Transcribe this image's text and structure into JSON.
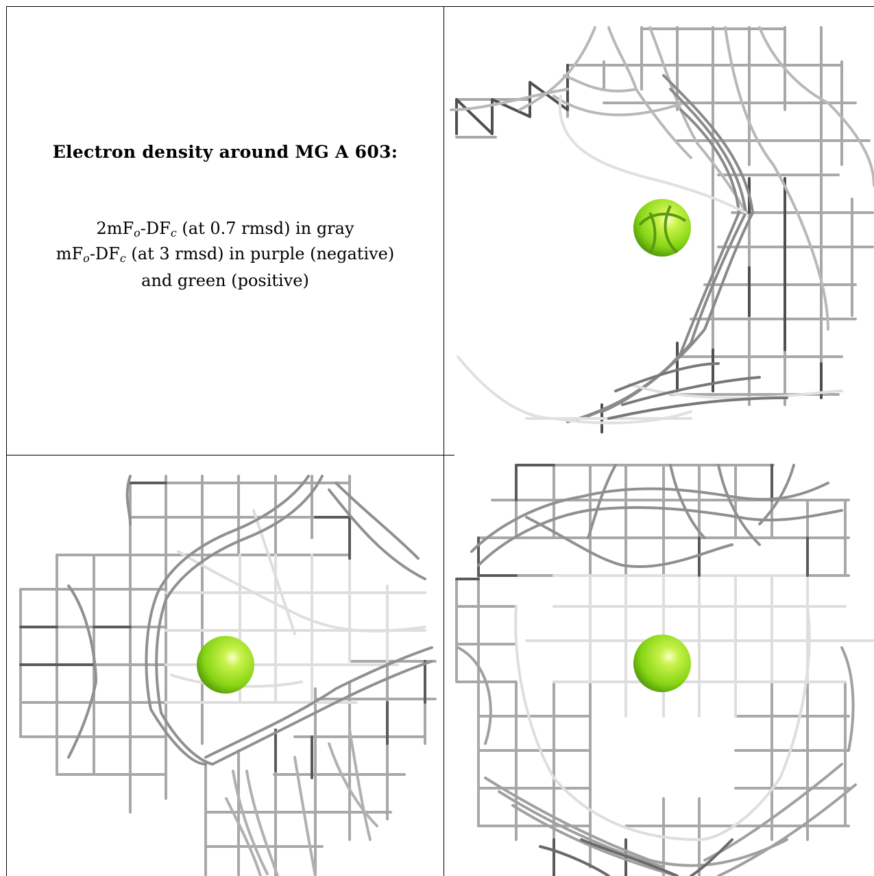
{
  "title": "Electron density around MG A 603:",
  "caption": {
    "line1_prefix": "2mF",
    "sub_o": "o",
    "dash": "-DF",
    "sub_c": "c",
    "line1_suffix": " (at 0.7 rmsd) in gray",
    "line2_prefix": "mF",
    "line2_suffix": " (at 3 rmsd) in purple (negative)",
    "line3": "and green (positive)"
  },
  "colors": {
    "mesh_dark": "#5a5a5a",
    "mesh_mid": "#9a9a9a",
    "mesh_light": "#dcdcdc",
    "atom": "#8fe01a",
    "atom_highlight": "#f4ffb0"
  },
  "icons": {
    "atom": "magnesium-ion-sphere"
  }
}
